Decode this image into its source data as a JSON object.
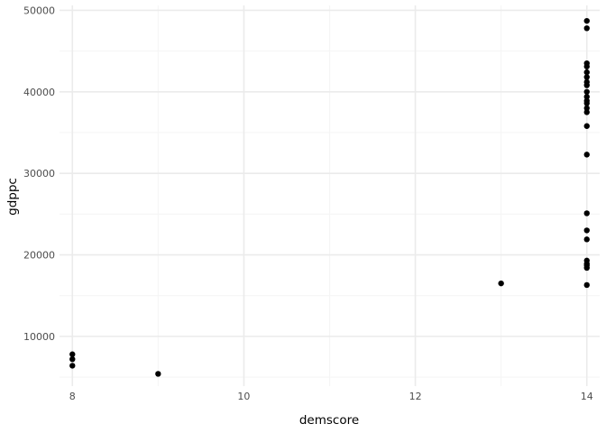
{
  "chart_data": {
    "type": "scatter",
    "xlabel": "demscore",
    "ylabel": "gdppc",
    "xlim": [
      7.85,
      14.15
    ],
    "ylim": [
      3900,
      50600
    ],
    "x_ticks": [
      8,
      10,
      12,
      14
    ],
    "x_tick_labels": [
      "8",
      "10",
      "12",
      "14"
    ],
    "x_minor_ticks": [
      9,
      11,
      13
    ],
    "y_ticks": [
      10000,
      20000,
      30000,
      40000,
      50000
    ],
    "y_tick_labels": [
      "10000",
      "20000",
      "30000",
      "40000",
      "50000"
    ],
    "y_minor_ticks": [
      5000,
      15000,
      25000,
      35000,
      45000
    ],
    "grid": true,
    "colors": {
      "point": "#000000",
      "grid_major": "#ebebeb",
      "grid_minor": "#f5f5f5"
    },
    "points": [
      {
        "x": 8,
        "y": 7800
      },
      {
        "x": 8,
        "y": 7200
      },
      {
        "x": 8,
        "y": 6400
      },
      {
        "x": 9,
        "y": 5400
      },
      {
        "x": 13,
        "y": 16500
      },
      {
        "x": 14,
        "y": 48700
      },
      {
        "x": 14,
        "y": 47800
      },
      {
        "x": 14,
        "y": 43500
      },
      {
        "x": 14,
        "y": 43100
      },
      {
        "x": 14,
        "y": 42400
      },
      {
        "x": 14,
        "y": 41800
      },
      {
        "x": 14,
        "y": 41200
      },
      {
        "x": 14,
        "y": 40800
      },
      {
        "x": 14,
        "y": 40000
      },
      {
        "x": 14,
        "y": 39400
      },
      {
        "x": 14,
        "y": 38900
      },
      {
        "x": 14,
        "y": 38600
      },
      {
        "x": 14,
        "y": 38000
      },
      {
        "x": 14,
        "y": 37500
      },
      {
        "x": 14,
        "y": 35800
      },
      {
        "x": 14,
        "y": 32300
      },
      {
        "x": 14,
        "y": 25100
      },
      {
        "x": 14,
        "y": 23000
      },
      {
        "x": 14,
        "y": 21900
      },
      {
        "x": 14,
        "y": 19300
      },
      {
        "x": 14,
        "y": 18900
      },
      {
        "x": 14,
        "y": 18700
      },
      {
        "x": 14,
        "y": 18400
      },
      {
        "x": 14,
        "y": 16300
      }
    ]
  }
}
